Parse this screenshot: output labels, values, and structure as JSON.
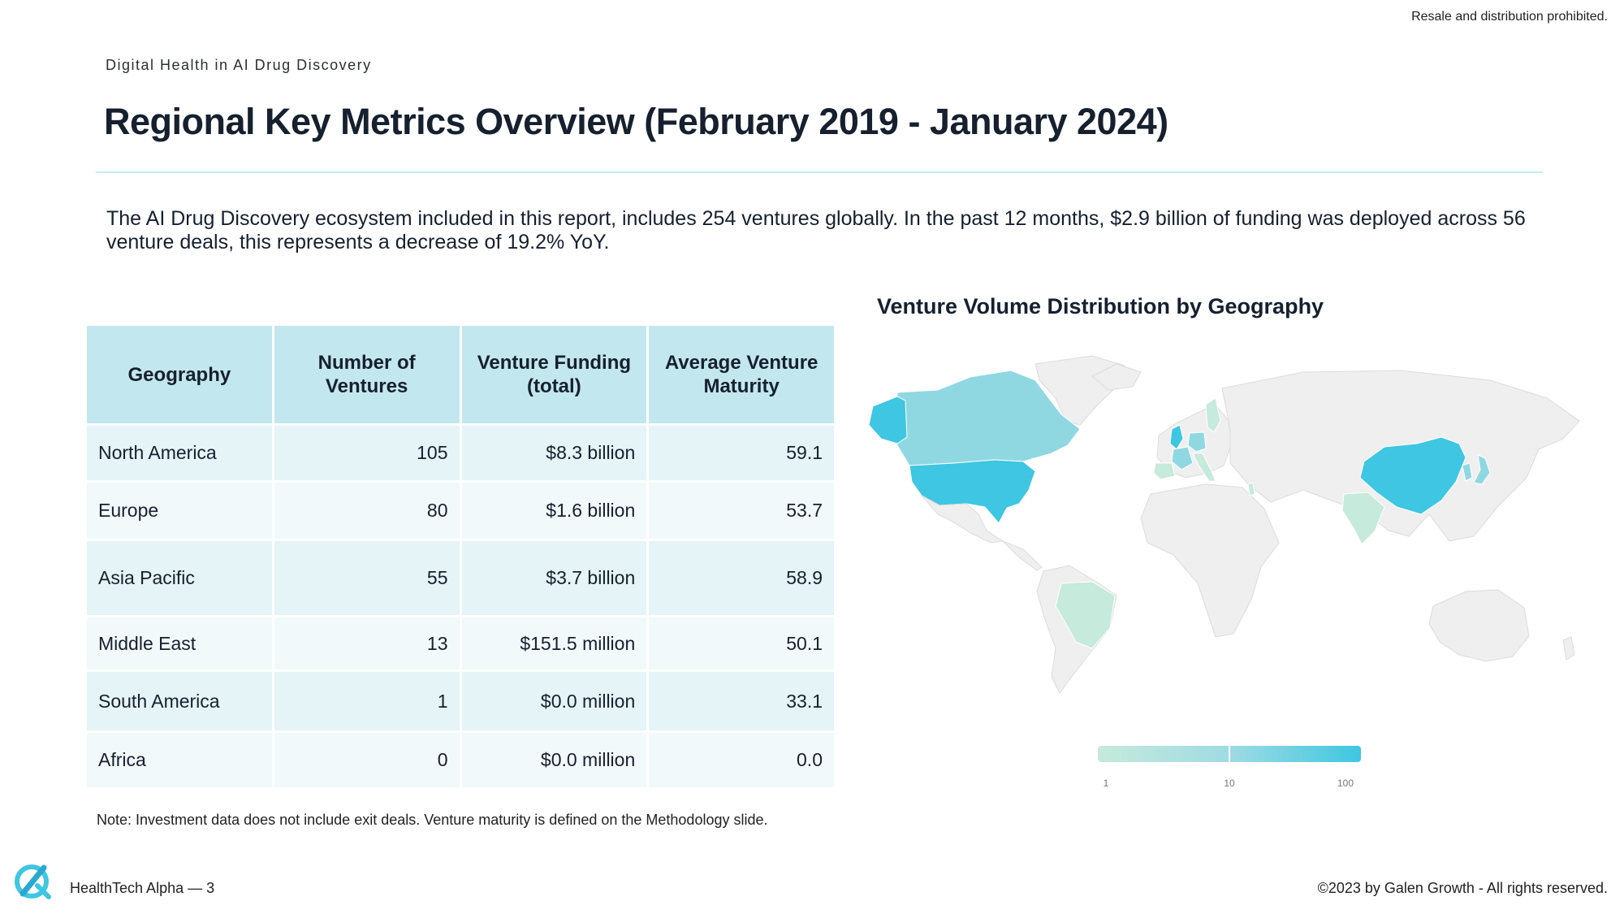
{
  "header": {
    "notice": "Resale and distribution prohibited.",
    "kicker": "Digital Health in AI Drug Discovery",
    "title": "Regional Key Metrics Overview (February 2019 - January 2024)"
  },
  "intro": "The AI Drug Discovery ecosystem included in this report, includes 254 ventures globally. In the past 12 months, $2.9 billion of funding was deployed across 56 venture deals, this represents a decrease of 19.2% YoY.",
  "table": {
    "headers": [
      "Geography",
      "Number of Ventures",
      "Venture Funding (total)",
      "Average Venture Maturity"
    ],
    "rows": [
      [
        "North America",
        "105",
        "$8.3 billion",
        "59.1"
      ],
      [
        "Europe",
        "80",
        "$1.6 billion",
        "53.7"
      ],
      [
        "Asia Pacific",
        "55",
        "$3.7 billion",
        "58.9"
      ],
      [
        "Middle East",
        "13",
        "$151.5 million",
        "50.1"
      ],
      [
        "South America",
        "1",
        "$0.0 million",
        "33.1"
      ],
      [
        "Africa",
        "0",
        "$0.0 million",
        "0.0"
      ]
    ]
  },
  "note": "Note: Investment data does not include exit deals. Venture maturity is defined on the Methodology slide.",
  "map": {
    "title": "Venture Volume Distribution by Geography",
    "scale": "log",
    "legend_ticks": [
      "1",
      "10",
      "100"
    ],
    "colors": {
      "base": "#efefef",
      "low": "#c6eadb",
      "mid": "#8fd8e2",
      "high": "#3ec6e2"
    }
  },
  "footer": {
    "left": "HealthTech Alpha  —  3",
    "right": "©2023 by Galen Growth  - All rights reserved."
  },
  "brand": {
    "accent": "#3ec6e2",
    "header_bg": "#c3e7ee"
  }
}
